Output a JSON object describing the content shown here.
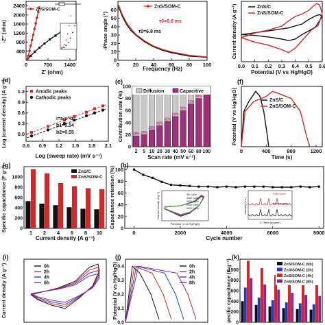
{
  "chart_data": [
    {
      "id": "a",
      "type": "line",
      "xlabel": "Z' (ohm)",
      "ylabel": "-Z'' (ohm)",
      "xticks": [
        "0",
        "700",
        "1400"
      ],
      "yticks": [
        "400",
        "800",
        "1200",
        "1600",
        "2000",
        "2400"
      ],
      "xlim": [
        0,
        1600
      ],
      "ylim": [
        0,
        2600
      ],
      "legend": [
        "ZnS/SOM-C"
      ],
      "series": [
        {
          "name": "ZnS/SOM-C",
          "color": "#d62728",
          "marker": "circle",
          "x": [
            30,
            70,
            110,
            150,
            190,
            230,
            270,
            310,
            350,
            390,
            420
          ],
          "y": [
            50,
            200,
            420,
            650,
            890,
            1130,
            1380,
            1630,
            1880,
            2130,
            2330
          ]
        },
        {
          "color": "#111111",
          "marker": "square",
          "x": [
            40,
            150,
            280,
            430,
            590,
            760,
            940,
            1120,
            1300,
            1450
          ],
          "y": [
            40,
            200,
            380,
            560,
            740,
            920,
            1090,
            1260,
            1420,
            1550
          ]
        }
      ]
    },
    {
      "id": "b",
      "type": "line",
      "xlabel": "Frequency (Hz)",
      "ylabel": "-Phase angle (°)",
      "xticks": [
        "0",
        "20",
        "40",
        "60",
        "80",
        "100"
      ],
      "yticks": [
        "0",
        "10",
        "20",
        "30",
        "40",
        "50",
        "60"
      ],
      "xlim": [
        0,
        100
      ],
      "ylim": [
        0,
        70
      ],
      "legend": [
        "ZnS/SOM-C"
      ],
      "annotations": [
        "τ0=6.6 ms",
        "τ0=6.8 ms"
      ],
      "series": [
        {
          "name": "ZnS/SOM-C",
          "color": "#d62728",
          "x": [
            0.5,
            2,
            5,
            10,
            15,
            20,
            30,
            40,
            50,
            60,
            70,
            80,
            90,
            100
          ],
          "y": [
            66,
            62,
            54,
            44,
            37,
            31,
            23,
            17,
            13,
            10,
            8,
            6,
            5,
            4
          ]
        },
        {
          "color": "#111111",
          "x": [
            0.5,
            2,
            5,
            10,
            15,
            20,
            30,
            40,
            50,
            60,
            70,
            80,
            90,
            100
          ],
          "y": [
            64,
            60,
            52,
            42,
            35,
            30,
            22,
            16,
            12,
            9,
            7,
            5,
            4.5,
            3.5
          ]
        }
      ]
    },
    {
      "id": "c",
      "type": "line",
      "xlabel": "Potential (V vs Hg/HgO)",
      "ylabel": "Current density (A g⁻¹)",
      "xticks": [
        "0.0",
        "0.1",
        "0.2",
        "0.3",
        "0.4",
        "0.5",
        "0.6"
      ],
      "xlim": [
        0,
        0.6
      ],
      "ylim": [
        -10,
        10
      ],
      "legend": [
        "ZnS/C",
        "ZnS/SOM-C"
      ],
      "series": [
        {
          "name": "ZnS/C",
          "color": "#111111",
          "x": [
            0.0,
            0.2,
            0.35,
            0.45,
            0.5,
            0.55,
            0.58,
            0.6,
            0.55,
            0.5,
            0.45,
            0.4,
            0.35,
            0.3,
            0.2,
            0.1,
            0.0
          ],
          "y": [
            -1,
            0.2,
            1.2,
            2.5,
            4.0,
            5.2,
            5.6,
            5.0,
            1.5,
            0.2,
            -1.0,
            -2.5,
            -3.0,
            -2.5,
            -1.8,
            -1.3,
            -1
          ]
        },
        {
          "name": "ZnS/SOM-C",
          "color": "#d62728",
          "x": [
            0.0,
            0.1,
            0.2,
            0.3,
            0.35,
            0.4,
            0.45,
            0.5,
            0.53,
            0.56,
            0.58,
            0.6,
            0.57,
            0.52,
            0.48,
            0.44,
            0.4,
            0.35,
            0.3,
            0.2,
            0.1,
            0.0
          ],
          "y": [
            -2,
            -0.5,
            0.5,
            1.8,
            3.5,
            5.0,
            5.8,
            7.0,
            8.3,
            9.3,
            8.8,
            6.0,
            2.0,
            0.5,
            -1.5,
            -3.5,
            -5.5,
            -7.0,
            -6.0,
            -4.5,
            -3.5,
            -2
          ]
        }
      ]
    },
    {
      "id": "d",
      "type": "scatter",
      "xlabel": "Log (sweep rate) (mV s⁻¹)",
      "ylabel": "Log (current density) (A g⁻¹)",
      "xticks": [
        "0.6",
        "0.9",
        "1.2",
        "1.5",
        "1.8",
        "2.1"
      ],
      "yticks": [
        "0.0",
        "0.3",
        "0.6",
        "0.9",
        "1.2"
      ],
      "xlim": [
        0.6,
        2.1
      ],
      "ylim": [
        -0.2,
        1.35
      ],
      "legend": [
        "Anodic peaks",
        "Cathodic peaks"
      ],
      "annotations": [
        "i=a·v^b",
        "b1=0.54",
        "b2=0.55"
      ],
      "series": [
        {
          "name": "Anodic peaks",
          "color": "#d62728",
          "x": [
            0.7,
            1.0,
            1.3,
            1.48,
            1.7,
            1.85,
            2.0
          ],
          "y": [
            0.05,
            0.22,
            0.4,
            0.5,
            0.62,
            0.72,
            0.8
          ]
        },
        {
          "name": "Cathodic peaks",
          "color": "#111111",
          "x": [
            0.7,
            1.0,
            1.3,
            1.48,
            1.7,
            1.85,
            2.0
          ],
          "y": [
            -0.05,
            0.12,
            0.3,
            0.4,
            0.52,
            0.6,
            0.68
          ]
        }
      ]
    },
    {
      "id": "e",
      "type": "bar",
      "xlabel": "Scan rate (mV s⁻¹)",
      "ylabel": "Contribution rate (%)",
      "categories": [
        "2",
        "5",
        "10",
        "20",
        "30",
        "40",
        "50",
        "60",
        "80",
        "100"
      ],
      "xticks": [
        "2",
        "5",
        "10",
        "20",
        "30",
        "40",
        "50",
        "60",
        "80",
        "100"
      ],
      "yticks": [
        "0",
        "20",
        "40",
        "60",
        "80",
        "100"
      ],
      "ylim": [
        0,
        100
      ],
      "legend": [
        "Diffusion",
        "Capacitive"
      ],
      "series": [
        {
          "name": "Capacitive",
          "color": "#a0307a",
          "values": [
            18,
            20,
            28,
            35,
            42,
            50,
            60,
            71,
            80,
            91
          ]
        },
        {
          "name": "Diffusion",
          "color": "#c8c8c8",
          "values": [
            82,
            80,
            72,
            65,
            58,
            50,
            40,
            29,
            20,
            9
          ]
        }
      ],
      "data_labels": [
        "18%",
        "20%",
        "28%",
        "35%",
        "42%",
        "50%",
        "60%",
        "71%",
        "80%",
        "91%"
      ]
    },
    {
      "id": "f",
      "type": "line",
      "xlabel": "Time (s)",
      "ylabel": "Potential (V vs Hg/HgO)",
      "xticks": [
        "0",
        "400",
        "800",
        "1200"
      ],
      "xlim": [
        0,
        1300
      ],
      "ylim": [
        0,
        0.6
      ],
      "legend": [
        "ZnS/C",
        "ZnS/SOM-C"
      ],
      "series": [
        {
          "name": "ZnS/C",
          "color": "#111111",
          "x": [
            0,
            40,
            120,
            230,
            300,
            360,
            420,
            440
          ],
          "y": [
            0,
            0.35,
            0.45,
            0.55,
            0.5,
            0.35,
            0.1,
            0
          ]
        },
        {
          "name": "ZnS/SOM-C",
          "color": "#d62728",
          "x": [
            0,
            60,
            200,
            400,
            500,
            600,
            800,
            950,
            1050,
            1100
          ],
          "y": [
            0,
            0.35,
            0.45,
            0.5,
            0.55,
            0.53,
            0.48,
            0.35,
            0.1,
            0
          ]
        }
      ]
    },
    {
      "id": "g",
      "type": "bar",
      "xlabel": "Current density (A g⁻¹)",
      "ylabel": "Specific capacitance (F g⁻¹)",
      "categories": [
        "1",
        "2",
        "4",
        "6",
        "8",
        "10"
      ],
      "xticks": [
        "1",
        "2",
        "4",
        "6",
        "8",
        "10"
      ],
      "yticks": [
        "0",
        "200",
        "400",
        "600",
        "800",
        "1000"
      ],
      "ylim": [
        0,
        1200
      ],
      "legend": [
        "ZnS/C",
        "ZnS/SOM-C"
      ],
      "series": [
        {
          "name": "ZnS/C",
          "color": "#111111",
          "values": [
            530,
            480,
            450,
            410,
            380,
            370
          ]
        },
        {
          "name": "ZnS/SOM-C",
          "color": "#d62728",
          "values": [
            1150,
            1070,
            880,
            820,
            780,
            760
          ]
        }
      ]
    },
    {
      "id": "h",
      "type": "line",
      "xlabel": "Cycle number",
      "ylabel": "Capacitance retention (%)",
      "xticks": [
        "0",
        "2000",
        "4000",
        "6000",
        "8000"
      ],
      "yticks": [
        "0",
        "20",
        "40",
        "60",
        "80",
        "100"
      ],
      "xlim": [
        -400,
        8200
      ],
      "ylim": [
        0,
        105
      ],
      "series": [
        {
          "color": "#111111",
          "x": [
            0,
            400,
            800,
            1200,
            1600,
            2000,
            2400,
            2800,
            3200,
            3600,
            4000,
            4400,
            4800,
            5200,
            5600,
            6000,
            6400,
            6800,
            7200,
            7600,
            8000
          ],
          "y": [
            100,
            91,
            86,
            79,
            74,
            73,
            72,
            71,
            71,
            70,
            71,
            70,
            71,
            71,
            71,
            70,
            70,
            70,
            71,
            70,
            71
          ]
        }
      ],
      "insets": [
        {
          "xlabel": "Potential (V vs Hg/HgO)",
          "ylabel": "Current density (A g⁻¹)",
          "legend": [
            "0th Cycle",
            "2000 Cycle",
            "4000 Cycle",
            "6000 Cycle",
            "8000 Cycle"
          ]
        },
        {
          "xlabel": "2 Theta (degree)",
          "ylabel": "Intensity (a.u.)",
          "legend": [
            "After cycle",
            "Before cycle"
          ]
        }
      ]
    },
    {
      "id": "i",
      "type": "line",
      "ylabel": "Current density (A g⁻¹)",
      "legend": [
        "0h",
        "2h",
        "4h",
        "6h"
      ],
      "series": [
        {
          "name": "0h",
          "color": "#111111"
        },
        {
          "name": "2h",
          "color": "#d62728"
        },
        {
          "name": "4h",
          "color": "#1f3fbf"
        },
        {
          "name": "6h",
          "color": "#8b2a8b"
        }
      ]
    },
    {
      "id": "j",
      "type": "line",
      "ylabel": "Potential (V vs Hg/HgO)",
      "yticks": [
        "0.0",
        "0.1",
        "0.2",
        "0.3",
        "0.4"
      ],
      "legend": [
        "0h",
        "2h",
        "4h",
        "8h"
      ],
      "series": [
        {
          "name": "0h",
          "color": "#111111"
        },
        {
          "name": "2h",
          "color": "#d62728"
        },
        {
          "name": "4h",
          "color": "#1f3fbf"
        },
        {
          "name": "8h",
          "color": "#8b2a8b"
        }
      ]
    },
    {
      "id": "k",
      "type": "bar",
      "ylabel": "pecific capacitance (F g⁻¹)",
      "yticks": [
        "0",
        "200",
        "400",
        "600",
        "800",
        "1000"
      ],
      "ylim": [
        0,
        1200
      ],
      "legend": [
        "ZnS/SOM-C (0h)",
        "ZnS/SOM-C (2h)",
        "ZnS/SOM-C (4h)",
        "ZnS/SOM-C (8h)"
      ],
      "series": [
        {
          "name": "ZnS/SOM-C (0h)",
          "color": "#111111",
          "values": [
            400,
            330,
            300,
            270,
            250,
            240
          ]
        },
        {
          "name": "ZnS/SOM-C (2h)",
          "color": "#1f3fbf",
          "values": [
            660,
            470,
            420,
            380,
            360,
            340
          ]
        },
        {
          "name": "ZnS/SOM-C (4h)",
          "color": "#d62728",
          "values": [
            1170,
            1030,
            900,
            840,
            790,
            760
          ]
        },
        {
          "name": "ZnS/SOM-C (8h)",
          "color": "#8b2a8b",
          "values": [
            840,
            720,
            620,
            560,
            520,
            500
          ]
        }
      ]
    }
  ],
  "panel_labels": [
    "(d)",
    "(e)",
    "(f)",
    "(g)",
    "(h)",
    "(i)",
    "(j)",
    "(k)"
  ]
}
